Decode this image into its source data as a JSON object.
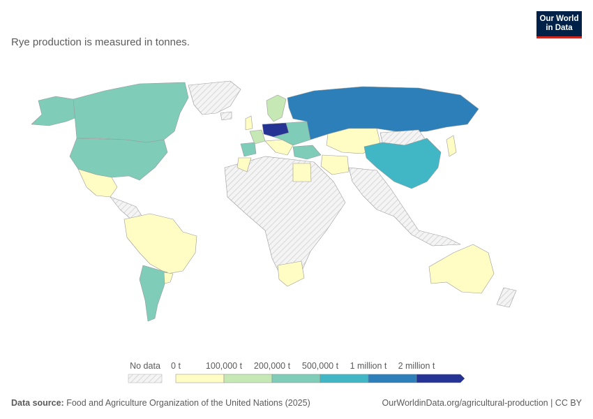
{
  "subtitle": "Rye production is measured in tonnes.",
  "logo": {
    "line1": "Our World",
    "line2": "in Data"
  },
  "legend": {
    "no_data_label": "No data",
    "tick_labels": [
      "0 t",
      "100,000 t",
      "200,000 t",
      "500,000 t",
      "1 million t",
      "2 million t"
    ],
    "colors": [
      "#fffcc4",
      "#c6e8b4",
      "#7fccb9",
      "#41b6c4",
      "#2c7fb8",
      "#253494"
    ],
    "no_data_color": "#e8e8e8"
  },
  "footer": {
    "source_label": "Data source:",
    "source_text": "Food and Agriculture Organization of the United Nations (2025)",
    "credit": "OurWorldinData.org/agricultural-production | CC BY"
  }
}
